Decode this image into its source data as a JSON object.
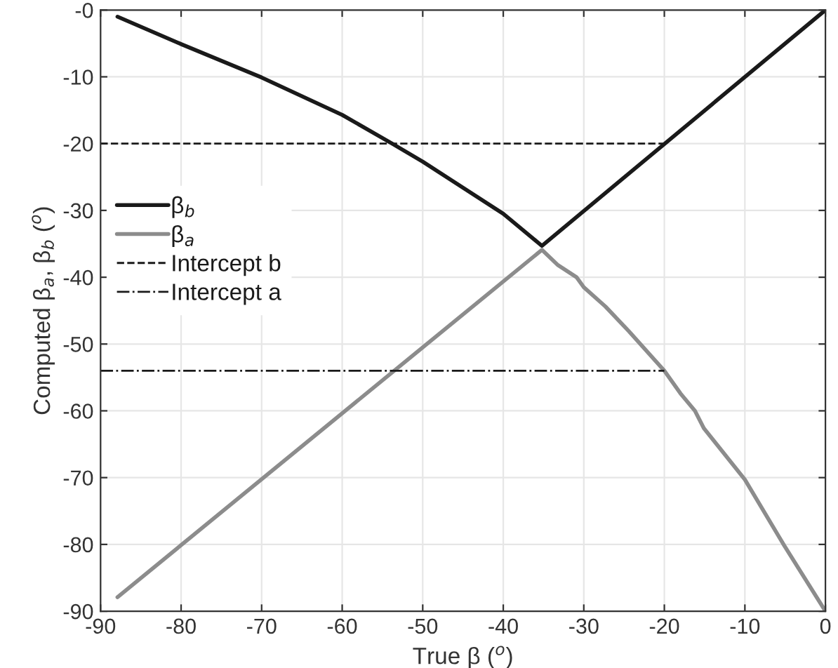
{
  "chart_data": {
    "type": "line",
    "xlabel": "True β ($^{o}$)",
    "ylabel": "Computed β$_{a}$, β$_{b}$ ($^{o}$)",
    "xlim": [
      -90,
      0
    ],
    "ylim": [
      -90,
      0
    ],
    "xticks": [
      -90,
      -80,
      -70,
      -60,
      -50,
      -40,
      -30,
      -20,
      -10,
      0
    ],
    "yticks": [
      -90,
      -80,
      -70,
      -60,
      -50,
      -40,
      -30,
      -20,
      -10,
      {
        "value": 0,
        "label": "-0"
      }
    ],
    "grid": true,
    "legend": "left",
    "series": [
      {
        "name": "β$_{b}$",
        "color": "#1a1a1a",
        "line_style": "solid",
        "x": [
          -87.9,
          -80,
          -70,
          -60,
          -53.8,
          -50,
          -40,
          -35.2,
          0
        ],
        "values": [
          -1.0,
          -5.1,
          -10.1,
          -15.7,
          -20,
          -22.7,
          -30.5,
          -35.3,
          0
        ]
      },
      {
        "name": "β$_{a}$",
        "color": "#8c8c8c",
        "line_style": "solid",
        "x": [
          -87.9,
          -35.2,
          -33.2,
          -30.9,
          -30,
          -27.3,
          -24.4,
          -20,
          -18,
          -16.2,
          -15.1,
          -10,
          -5.1,
          0
        ],
        "values": [
          -87.9,
          -35.9,
          -38.2,
          -40,
          -41.5,
          -44.4,
          -48.1,
          -54.0,
          -57.4,
          -60,
          -62.6,
          -70.3,
          -80.2,
          -90
        ]
      },
      {
        "name": "Intercept b",
        "color": "#1a1a1a",
        "line_style": "dashed",
        "x": [
          -90,
          -20
        ],
        "values": [
          -20,
          -20
        ]
      },
      {
        "name": "Intercept a",
        "color": "#1a1a1a",
        "line_style": "dashdot",
        "x": [
          -90,
          -20
        ],
        "values": [
          -54,
          -54
        ]
      }
    ]
  }
}
